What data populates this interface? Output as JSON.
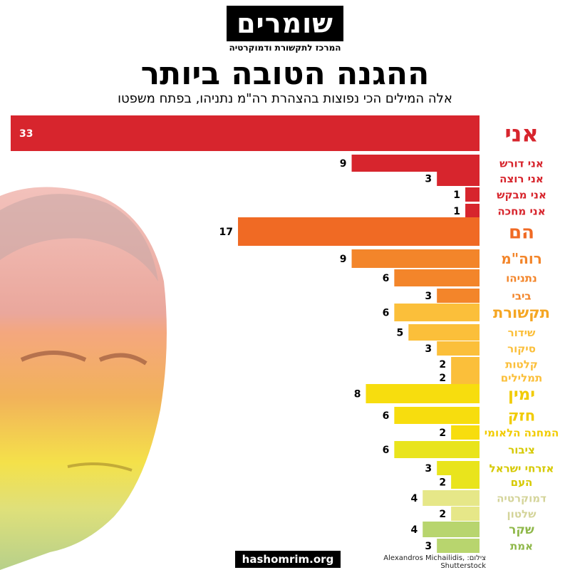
{
  "header": {
    "logo_text": "שומרים",
    "logo_subtitle": "המרכז לתקשורת ודמוקרטיה",
    "title": "ההגנה הטובה ביותר",
    "subtitle": "אלה המילים הכי נפוצות בהצהרת רה\"מ נתניהו, בפתח משפטו"
  },
  "footer": {
    "url": "hashomrim.org",
    "credit": "צילום: Alexandros Michailidis, Shutterstock"
  },
  "chart_data": {
    "type": "bar",
    "orientation": "horizontal",
    "xlim": [
      0,
      33
    ],
    "grid": false,
    "categories": [
      "אני",
      "אני דורש",
      "אני רוצה",
      "אני מבקש",
      "אני מחכה",
      "הם",
      "רוה\"מ",
      "נתניהו",
      "ביבי",
      "תקשורת",
      "שידור",
      "סיקור",
      "קלטות",
      "תמלילים",
      "ימין",
      "חזק",
      "המחנה הלאומי",
      "ציבור",
      "אזרחי ישראל",
      "העם",
      "דמוקרטיה",
      "שלטון",
      "שקר",
      "אמת"
    ],
    "values": [
      33,
      9,
      3,
      1,
      1,
      17,
      9,
      6,
      3,
      6,
      5,
      3,
      2,
      2,
      8,
      6,
      2,
      6,
      3,
      2,
      4,
      2,
      4,
      3
    ],
    "colors": [
      "#d7252d",
      "#d7252d",
      "#d7252d",
      "#d7252d",
      "#d7252d",
      "#f06a24",
      "#f3852a",
      "#f3852a",
      "#f3852a",
      "#fbbf3a",
      "#fbbf3a",
      "#fbbf3a",
      "#fbbf3a",
      "#fbbf3a",
      "#f7dd0e",
      "#f7dd0e",
      "#f7dd0e",
      "#e9e41c",
      "#e9e41c",
      "#e9e41c",
      "#e6e788",
      "#e6e788",
      "#b8d56e",
      "#b8d56e"
    ],
    "label_colors": [
      "#d7252d",
      "#d7252d",
      "#d7252d",
      "#d7252d",
      "#d7252d",
      "#f06a24",
      "#f3852a",
      "#f3852a",
      "#f3852a",
      "#f5a623",
      "#fbbf3a",
      "#fbbf3a",
      "#fbbf3a",
      "#fbbf3a",
      "#f1cb00",
      "#f1cb00",
      "#f1cb00",
      "#d6c900",
      "#d6c900",
      "#d6c900",
      "#d4d49a",
      "#d4d49a",
      "#8fb84a",
      "#8fb84a"
    ]
  }
}
